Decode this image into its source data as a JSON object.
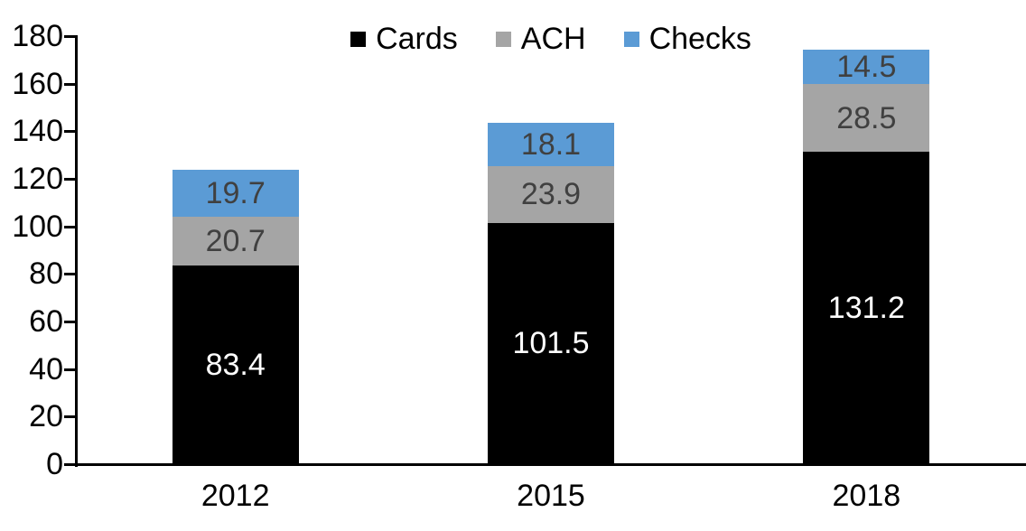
{
  "chart_data": {
    "type": "bar",
    "stacked": true,
    "title": "",
    "categories": [
      "2012",
      "2015",
      "2018"
    ],
    "series": [
      {
        "name": "Cards",
        "color": "#000000",
        "label_color": "#ffffff",
        "values": [
          83.4,
          101.5,
          131.2
        ]
      },
      {
        "name": "ACH",
        "color": "#A5A5A5",
        "label_color": "#404040",
        "values": [
          20.7,
          23.9,
          28.5
        ]
      },
      {
        "name": "Checks",
        "color": "#5B9BD5",
        "label_color": "#404040",
        "values": [
          19.7,
          18.1,
          14.5
        ]
      }
    ],
    "totals": [
      123.8,
      143.5,
      174.2
    ],
    "ylim": [
      0,
      180
    ],
    "ytick_step": 20,
    "ytick_labels": [
      "0",
      "20",
      "40",
      "60",
      "80",
      "100",
      "120",
      "140",
      "160",
      "180"
    ],
    "xlabel": "",
    "ylabel": "",
    "legend": [
      "Cards",
      "ACH",
      "Checks"
    ],
    "legend_position": "top-center",
    "grid": false,
    "axis_color": "#000000",
    "value_decimals": 1
  }
}
